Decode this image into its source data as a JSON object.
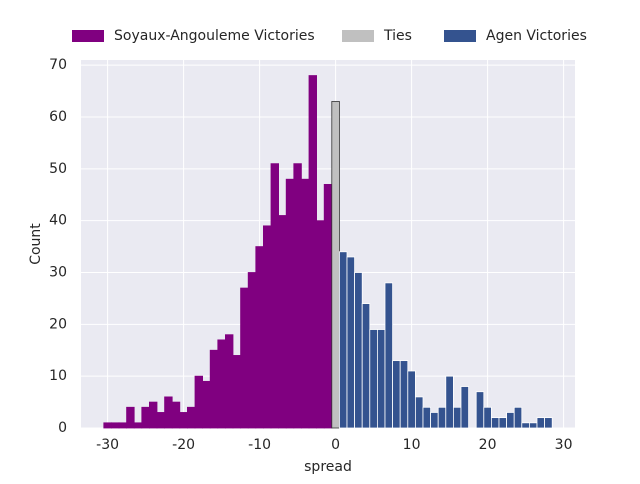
{
  "chart_data": {
    "type": "histogram",
    "xlabel": "spread",
    "ylabel": "Count",
    "xlim": [
      -33.5,
      31.5
    ],
    "ylim": [
      0,
      71
    ],
    "xticks": [
      -30,
      -20,
      -10,
      0,
      10,
      20,
      30
    ],
    "yticks": [
      0,
      10,
      20,
      30,
      40,
      50,
      60,
      70
    ],
    "grid": true,
    "legend": "top",
    "series": [
      {
        "name": "Soyaux-Angouleme Victories",
        "color": "#800080",
        "edge": "#800080",
        "bins": [
          -30.5,
          -29.5,
          -28.5,
          -27.5,
          -26.5,
          -25.5,
          -24.5,
          -23.5,
          -22.5,
          -21.5,
          -20.5,
          -19.5,
          -18.5,
          -17.5,
          -16.5,
          -15.5,
          -14.5,
          -13.5,
          -12.5,
          -11.5,
          -10.5,
          -9.5,
          -8.5,
          -7.5,
          -6.5,
          -5.5,
          -4.5,
          -3.5,
          -2.5,
          -1.5,
          -0.5
        ],
        "counts": [
          1,
          1,
          1,
          4,
          1,
          4,
          5,
          3,
          6,
          5,
          3,
          4,
          10,
          9,
          15,
          17,
          18,
          14,
          27,
          30,
          35,
          39,
          51,
          41,
          48,
          51,
          48,
          68,
          40,
          47
        ]
      },
      {
        "name": "Ties",
        "color": "#c0c0c0",
        "edge": "#333333",
        "bins": [
          -0.5,
          0.5
        ],
        "counts": [
          63
        ]
      },
      {
        "name": "Agen Victories",
        "color": "#34538f",
        "edge": "#ffffff",
        "bins": [
          0.5,
          1.5,
          2.5,
          3.5,
          4.5,
          5.5,
          6.5,
          7.5,
          8.5,
          9.5,
          10.5,
          11.5,
          12.5,
          13.5,
          14.5,
          15.5,
          16.5,
          17.5,
          18.5,
          19.5,
          20.5,
          21.5,
          22.5,
          23.5,
          24.5,
          25.5,
          26.5,
          27.5,
          28.5
        ],
        "counts": [
          34,
          33,
          30,
          24,
          19,
          19,
          28,
          13,
          13,
          11,
          6,
          4,
          3,
          4,
          10,
          4,
          8,
          0,
          7,
          4,
          2,
          2,
          3,
          4,
          1,
          1,
          2,
          2
        ]
      }
    ]
  }
}
